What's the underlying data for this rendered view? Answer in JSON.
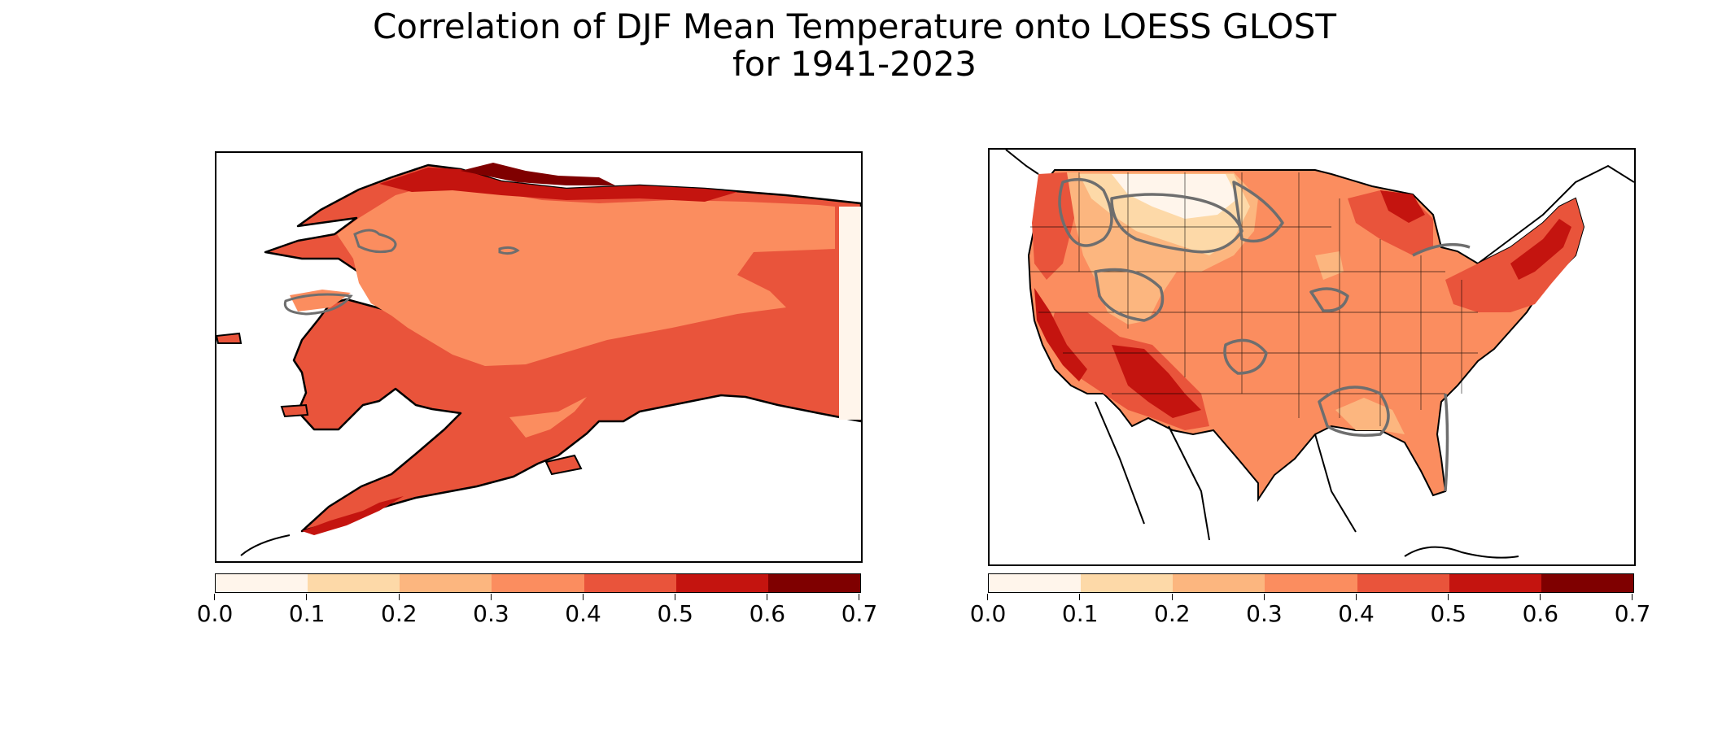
{
  "title": {
    "line1": "Correlation of DJF Mean Temperature onto LOESS GLOST",
    "line2": "for 1941-2023"
  },
  "colorbar": {
    "ticks": [
      "0.0",
      "0.1",
      "0.2",
      "0.3",
      "0.4",
      "0.5",
      "0.6",
      "0.7"
    ],
    "colors": [
      "#fff5eb",
      "#fdd9a8",
      "#fcb67f",
      "#fb8d5f",
      "#e9543b",
      "#c4140f",
      "#7f0000"
    ],
    "range": [
      0.0,
      0.7
    ]
  },
  "panels": [
    {
      "region": "Alaska",
      "contour_color": "#6e6e6e"
    },
    {
      "region": "Contiguous United States",
      "contour_color": "#6e6e6e"
    }
  ]
}
